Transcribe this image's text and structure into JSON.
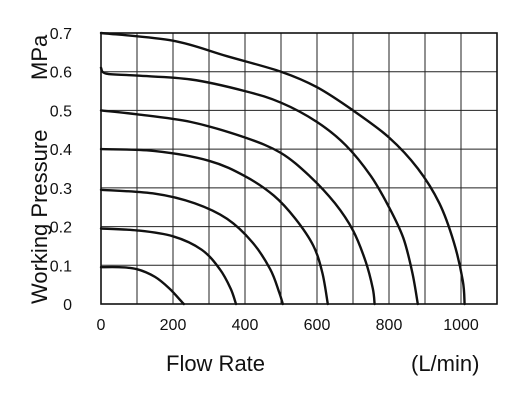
{
  "chart_data": {
    "type": "line",
    "title": "",
    "xlabel": "Flow Rate",
    "xunit": "(L/min)",
    "ylabel": "Working Pressure",
    "yunit": "MPa",
    "xlim": [
      0,
      1100
    ],
    "ylim": [
      0,
      0.7
    ],
    "xticks": [
      0,
      200,
      400,
      600,
      800,
      1000
    ],
    "yticks": [
      0,
      0.1,
      0.2,
      0.3,
      0.4,
      0.5,
      0.6,
      0.7
    ],
    "grid": true,
    "series": [
      {
        "points": [
          [
            0,
            0.095
          ],
          [
            50,
            0.095
          ],
          [
            100,
            0.09
          ],
          [
            150,
            0.07
          ],
          [
            190,
            0.04
          ],
          [
            220,
            0.01
          ],
          [
            230,
            0
          ]
        ]
      },
      {
        "points": [
          [
            0,
            0.195
          ],
          [
            100,
            0.19
          ],
          [
            200,
            0.175
          ],
          [
            280,
            0.14
          ],
          [
            330,
            0.09
          ],
          [
            360,
            0.04
          ],
          [
            375,
            0
          ]
        ]
      },
      {
        "points": [
          [
            0,
            0.295
          ],
          [
            150,
            0.285
          ],
          [
            260,
            0.26
          ],
          [
            350,
            0.22
          ],
          [
            420,
            0.16
          ],
          [
            470,
            0.09
          ],
          [
            495,
            0.03
          ],
          [
            505,
            0
          ]
        ]
      },
      {
        "points": [
          [
            0,
            0.4
          ],
          [
            150,
            0.395
          ],
          [
            300,
            0.37
          ],
          [
            400,
            0.33
          ],
          [
            480,
            0.28
          ],
          [
            540,
            0.22
          ],
          [
            590,
            0.15
          ],
          [
            615,
            0.08
          ],
          [
            630,
            0
          ]
        ]
      },
      {
        "points": [
          [
            0,
            0.5
          ],
          [
            100,
            0.49
          ],
          [
            250,
            0.47
          ],
          [
            400,
            0.43
          ],
          [
            500,
            0.39
          ],
          [
            580,
            0.33
          ],
          [
            650,
            0.26
          ],
          [
            700,
            0.19
          ],
          [
            735,
            0.11
          ],
          [
            755,
            0.04
          ],
          [
            760,
            0
          ]
        ]
      },
      {
        "points": [
          [
            0,
            0.61
          ],
          [
            15,
            0.595
          ],
          [
            100,
            0.59
          ],
          [
            250,
            0.58
          ],
          [
            400,
            0.55
          ],
          [
            500,
            0.52
          ],
          [
            600,
            0.47
          ],
          [
            680,
            0.41
          ],
          [
            750,
            0.33
          ],
          [
            800,
            0.25
          ],
          [
            840,
            0.17
          ],
          [
            865,
            0.08
          ],
          [
            880,
            0
          ]
        ]
      },
      {
        "points": [
          [
            0,
            0.7
          ],
          [
            200,
            0.68
          ],
          [
            350,
            0.64
          ],
          [
            500,
            0.6
          ],
          [
            600,
            0.56
          ],
          [
            700,
            0.5
          ],
          [
            800,
            0.43
          ],
          [
            880,
            0.35
          ],
          [
            940,
            0.26
          ],
          [
            980,
            0.16
          ],
          [
            1005,
            0.06
          ],
          [
            1010,
            0
          ]
        ]
      }
    ]
  }
}
